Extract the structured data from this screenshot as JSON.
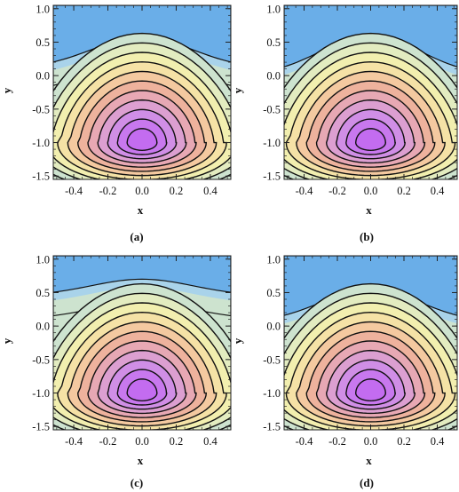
{
  "chart_data": [
    {
      "type": "contour",
      "caption": "(a)",
      "xlabel": "x",
      "ylabel": "y",
      "xlim": [
        -0.52,
        0.52
      ],
      "ylim": [
        -1.55,
        1.05
      ],
      "xticks": [
        "-0.4",
        "-0.2",
        "0.0",
        "0.2",
        "0.4"
      ],
      "yticks": [
        "1.0",
        "0.5",
        "0.0",
        "-0.5",
        "-1.0",
        "-1.5"
      ],
      "peak": {
        "x": 0.0,
        "y": -1.0
      },
      "top_flat_boundary_y": {
        "edge": 0.1,
        "center": 0.57
      },
      "contour_levels": 12
    },
    {
      "type": "contour",
      "caption": "(b)",
      "xlabel": "x",
      "ylabel": "y",
      "xlim": [
        -0.52,
        0.52
      ],
      "ylim": [
        -1.55,
        1.05
      ],
      "xticks": [
        "-0.4",
        "-0.2",
        "0.0",
        "0.2",
        "0.4"
      ],
      "yticks": [
        "1.0",
        "0.5",
        "0.0",
        "-0.5",
        "-1.0",
        "-1.5"
      ],
      "peak": {
        "x": 0.0,
        "y": -1.0
      },
      "top_flat_boundary_y": {
        "edge": 0.0,
        "center": 0.6
      },
      "contour_levels": 12
    },
    {
      "type": "contour",
      "caption": "(c)",
      "xlabel": "x",
      "ylabel": "y",
      "xlim": [
        -0.52,
        0.52
      ],
      "ylim": [
        -1.55,
        1.05
      ],
      "xticks": [
        "-0.4",
        "-0.2",
        "0.0",
        "0.2",
        "0.4"
      ],
      "yticks": [
        "1.0",
        "0.5",
        "0.0",
        "-0.5",
        "-1.0",
        "-1.5"
      ],
      "peak": {
        "x": 0.0,
        "y": -1.0
      },
      "top_flat_boundary_y": {
        "edge": 0.45,
        "center": 0.7
      },
      "contour_levels": 12
    },
    {
      "type": "contour",
      "caption": "(d)",
      "xlabel": "x",
      "ylabel": "y",
      "xlim": [
        -0.52,
        0.52
      ],
      "ylim": [
        -1.55,
        1.05
      ],
      "xticks": [
        "-0.4",
        "-0.2",
        "0.0",
        "0.2",
        "0.4"
      ],
      "yticks": [
        "1.0",
        "0.5",
        "0.0",
        "-0.5",
        "-1.0",
        "-1.5"
      ],
      "peak": {
        "x": 0.0,
        "y": -1.0
      },
      "top_flat_boundary_y": {
        "edge": 0.05,
        "center": 0.55
      },
      "contour_levels": 12
    }
  ],
  "colors": {
    "top_flat": "#6aaee8",
    "palette": [
      "#a9d3ea",
      "#cde3cf",
      "#e3ecc0",
      "#f2efaf",
      "#f5e2a6",
      "#f4c9a0",
      "#eeb29d",
      "#e7a8b4",
      "#dc9fd1",
      "#d08ee6",
      "#c878ee",
      "#c36cf0"
    ],
    "contour_line": "#111111"
  }
}
